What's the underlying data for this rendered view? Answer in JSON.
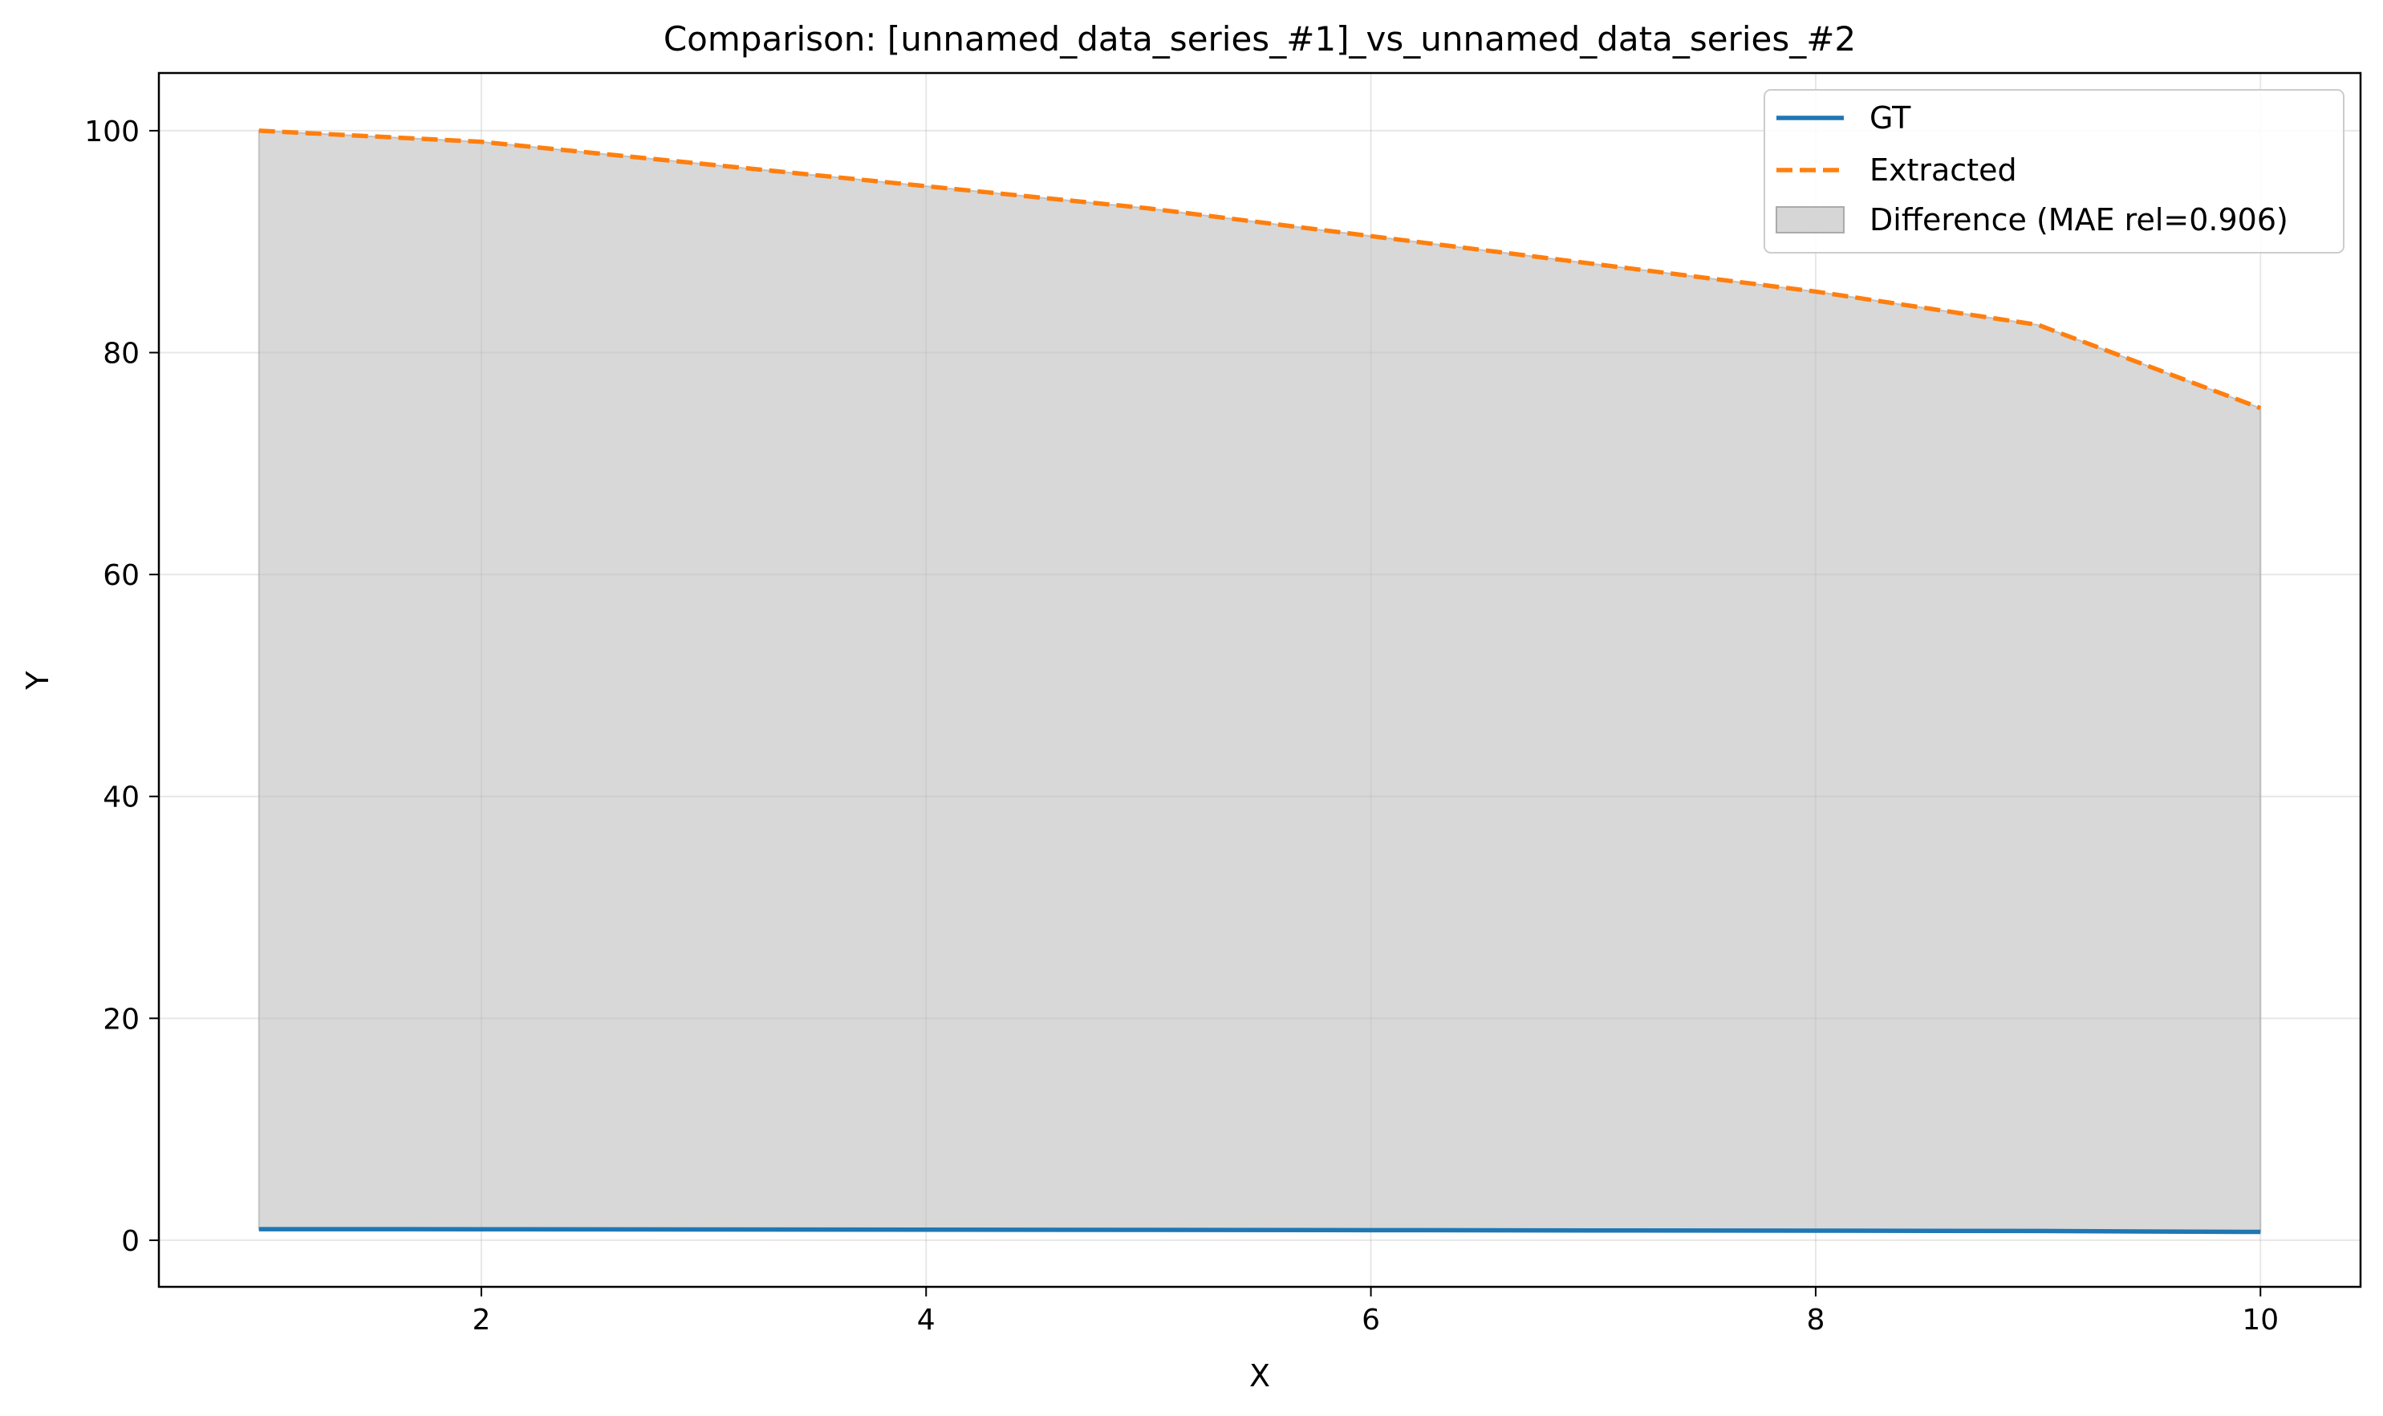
{
  "chart_data": {
    "type": "line",
    "title": "Comparison: [unnamed_data_series_#1]_vs_unnamed_data_series_#2",
    "xlabel": "X",
    "ylabel": "Y",
    "xlim": [
      0.55,
      10.45
    ],
    "ylim": [
      -4.2,
      105.2
    ],
    "xticks": [
      2,
      4,
      6,
      8,
      10
    ],
    "yticks": [
      0,
      20,
      40,
      60,
      80,
      100
    ],
    "grid": true,
    "legend_position": "upper right",
    "x": [
      1,
      2,
      3,
      4,
      5,
      6,
      7,
      8,
      9,
      10
    ],
    "series": [
      {
        "name": "GT",
        "style": "solid",
        "color": "#1f77b4",
        "values": [
          1.0,
          0.99,
          0.97,
          0.95,
          0.93,
          0.91,
          0.88,
          0.86,
          0.83,
          0.75
        ]
      },
      {
        "name": "Extracted",
        "style": "dashed",
        "color": "#ff7f0e",
        "values": [
          100,
          99,
          97,
          95,
          93,
          90.5,
          88,
          85.5,
          82.5,
          75
        ]
      }
    ],
    "fill_between": {
      "label": "Difference (MAE rel=0.906)",
      "color": "#bbbbbb",
      "between": [
        "GT",
        "Extracted"
      ]
    }
  }
}
